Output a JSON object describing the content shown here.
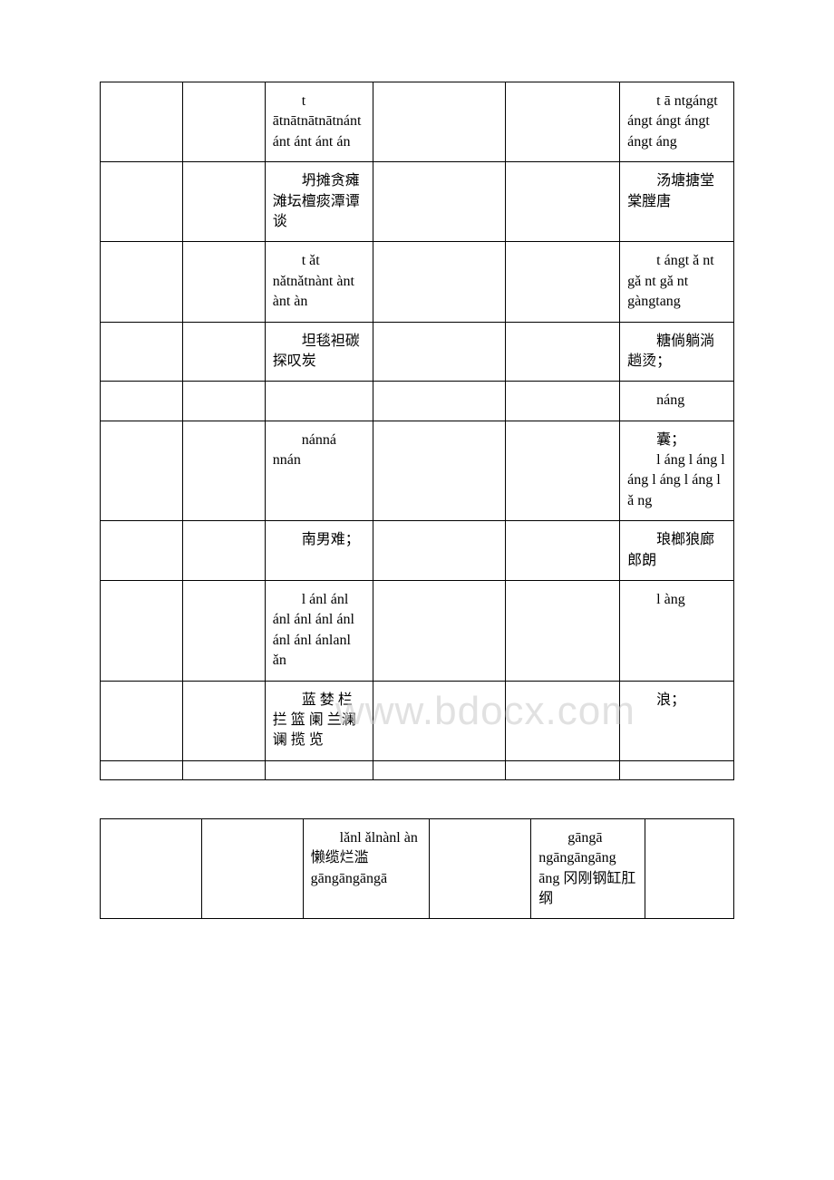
{
  "watermark": "www.bdocx.com",
  "table1_colors": {
    "border": "#000000",
    "background": "#ffffff",
    "text": "#000000"
  },
  "table1": {
    "rows": [
      {
        "c1": "",
        "c2": "",
        "c3": "t ātnātnātnātnánt ánt ánt ánt án",
        "c4": "",
        "c5": "",
        "c6": "t ā ntgángt ángt ángt ángt ángt áng"
      },
      {
        "c1": "",
        "c2": "",
        "c3": "坍摊贪瘫滩坛檀痰潭谭谈",
        "c4": "",
        "c5": "",
        "c6": "汤塘搪堂棠膛唐"
      },
      {
        "c1": "",
        "c2": "",
        "c3": "t ǎt nǎtnǎtnànt ànt ànt àn",
        "c4": "",
        "c5": "",
        "c6": "t ángt ǎ nt gǎ nt gǎ nt gàngtang"
      },
      {
        "c1": "",
        "c2": "",
        "c3": "坦毯袒碳探叹炭",
        "c4": "",
        "c5": "",
        "c6": "糖倘躺淌趟烫；"
      },
      {
        "c1": "",
        "c2": "",
        "c3": "",
        "c4": "",
        "c5": "",
        "c6": "náng"
      },
      {
        "c1": "",
        "c2": "",
        "c3": "nánná nnán",
        "c4": "",
        "c5": "",
        "c6": "囊；\nl áng l áng l áng l áng l áng l ǎ ng"
      },
      {
        "c1": "",
        "c2": "",
        "c3": "南男难；",
        "c4": "",
        "c5": "",
        "c6": "琅榔狼廊郎朗"
      },
      {
        "c1": "",
        "c2": "",
        "c3": "l ánl ánl ánl ánl ánl ánl ánl ánl ánlanl ǎn",
        "c4": "",
        "c5": "",
        "c6": "l àng"
      },
      {
        "c1": "",
        "c2": "",
        "c3": "蓝 婪 栏 拦 篮 阑 兰澜 谰 揽 览",
        "c4": "",
        "c5": "",
        "c6": "浪；"
      },
      {
        "c1": "",
        "c2": "",
        "c3": "",
        "c4": "",
        "c5": "",
        "c6": ""
      }
    ]
  },
  "table2": {
    "rows": [
      {
        "c1": "",
        "c2": "",
        "c3": "lǎnl ǎlnànl àn 懒缆烂滥 gāngāngāngā",
        "c4": "",
        "c5": "gāngā ngāngāngāng āng 冈刚钢缸肛纲",
        "c6": ""
      }
    ]
  }
}
